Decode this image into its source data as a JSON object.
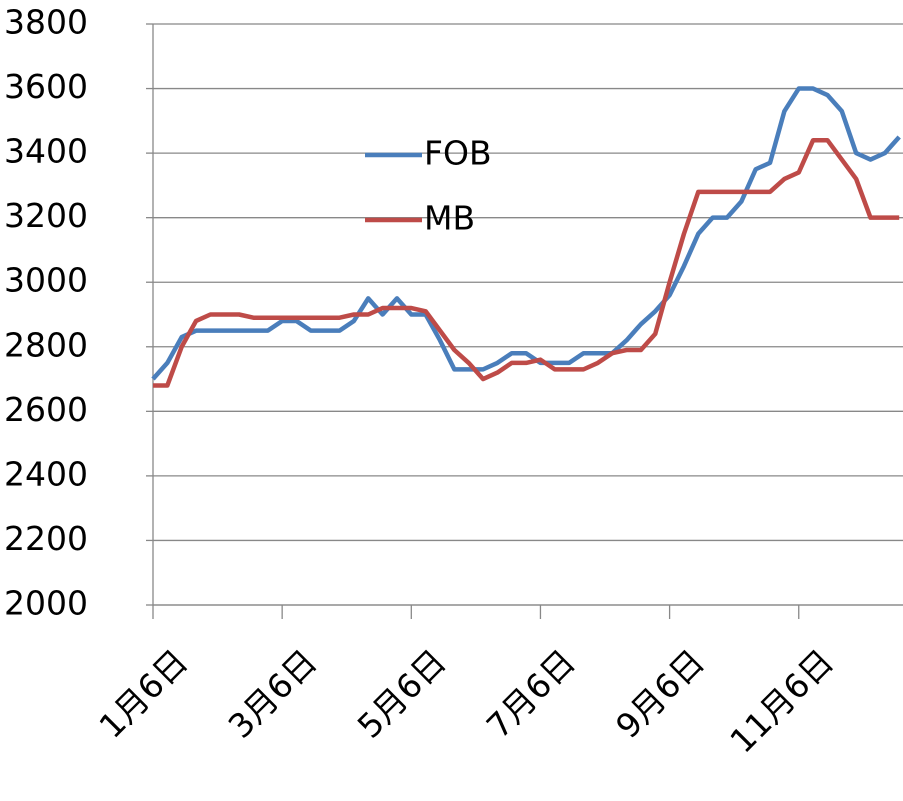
{
  "chart_data": {
    "type": "line",
    "categories": [
      "1月6日",
      null,
      null,
      null,
      null,
      null,
      null,
      null,
      null,
      "3月6日",
      null,
      null,
      null,
      null,
      null,
      null,
      null,
      null,
      "5月6日",
      null,
      null,
      null,
      null,
      null,
      null,
      null,
      null,
      "7月6日",
      null,
      null,
      null,
      null,
      null,
      null,
      null,
      null,
      "9月6日",
      null,
      null,
      null,
      null,
      null,
      null,
      null,
      null,
      "11月6日",
      null,
      null,
      null,
      null,
      null,
      null,
      null
    ],
    "series": [
      {
        "name": "FOB",
        "color": "#4a7ebb",
        "values": [
          2700,
          2750,
          2830,
          2850,
          2850,
          2850,
          2850,
          2850,
          2850,
          2880,
          2880,
          2850,
          2850,
          2850,
          2880,
          2950,
          2900,
          2950,
          2900,
          2900,
          2820,
          2730,
          2730,
          2730,
          2750,
          2780,
          2780,
          2750,
          2750,
          2750,
          2780,
          2780,
          2780,
          2820,
          2870,
          2910,
          2960,
          3050,
          3150,
          3200,
          3200,
          3250,
          3350,
          3370,
          3530,
          3600,
          3600,
          3580,
          3530,
          3400,
          3380,
          3400,
          3450
        ]
      },
      {
        "name": "MB",
        "color": "#be4b48",
        "values": [
          2680,
          2680,
          2800,
          2880,
          2900,
          2900,
          2900,
          2890,
          2890,
          2890,
          2890,
          2890,
          2890,
          2890,
          2900,
          2900,
          2920,
          2920,
          2920,
          2910,
          2850,
          2790,
          2750,
          2700,
          2720,
          2750,
          2750,
          2760,
          2730,
          2730,
          2730,
          2750,
          2780,
          2790,
          2790,
          2840,
          3000,
          3150,
          3280,
          3280,
          3280,
          3280,
          3280,
          3280,
          3320,
          3340,
          3440,
          3440,
          3380,
          3320,
          3200,
          3200,
          3200
        ]
      }
    ],
    "ylim": [
      2000,
      3800
    ],
    "yticks": [
      2000,
      2200,
      2400,
      2600,
      2800,
      3000,
      3200,
      3400,
      3600,
      3800
    ],
    "grid": true
  }
}
